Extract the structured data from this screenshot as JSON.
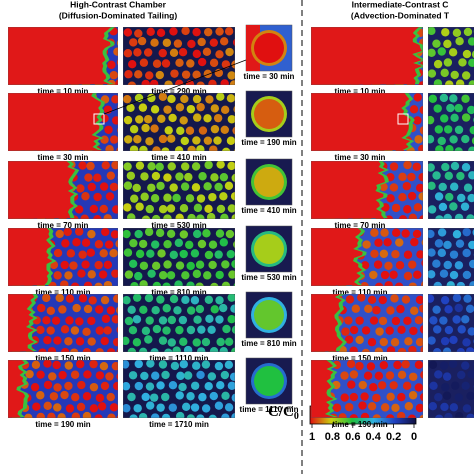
{
  "left": {
    "title": "High-Contrast Chamber",
    "subtitle": "(Diffusion-Dominated Tailing)",
    "column1_times": [
      "time = 10 min",
      "time = 30 min",
      "time = 70 min",
      "time = 110 min",
      "time = 150 min",
      "time = 190 min"
    ],
    "column2_times": [
      "time = 290 min",
      "time = 410 min",
      "time = 530 min",
      "time = 810 min",
      "time = 1110 min",
      "time = 1710 min"
    ],
    "zoom_times": [
      "time = 30 min",
      "time = 190 min",
      "time = 410 min",
      "time = 530 min",
      "time = 810 min",
      "time = 1110 min"
    ]
  },
  "right": {
    "title": "Intermediate-Contrast C",
    "subtitle": "(Advection-Dominated T",
    "column1_times": [
      "time = 10 min",
      "time = 30 min",
      "time = 70 min",
      "time = 110 min",
      "time = 150 min",
      "time = 190 min"
    ]
  },
  "colorbar": {
    "label": "C/C",
    "label_subscript": "0",
    "ticks": [
      "1",
      "0.8",
      "0.6",
      "0.4",
      "0.2",
      "0"
    ]
  }
}
